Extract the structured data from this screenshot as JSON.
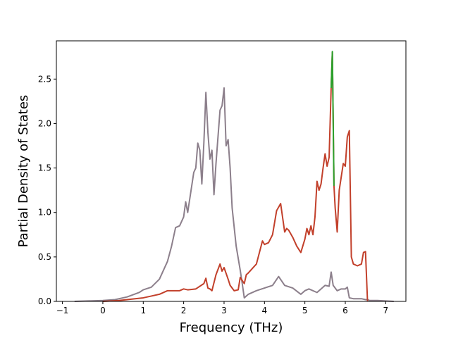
{
  "chart_data": {
    "type": "line",
    "title": "",
    "xlabel": "Frequency (THz)",
    "ylabel": "Partial Density of States",
    "xlim": [
      -1.15,
      7.5
    ],
    "ylim": [
      0,
      2.93
    ],
    "xticks": [
      -1,
      0,
      1,
      2,
      3,
      4,
      5,
      6,
      7
    ],
    "xtick_labels": [
      "−1",
      "0",
      "1",
      "2",
      "3",
      "4",
      "5",
      "6",
      "7"
    ],
    "yticks": [
      0,
      0.5,
      1.0,
      1.5,
      2.0,
      2.5
    ],
    "ytick_labels": [
      "0.0",
      "0.5",
      "1.0",
      "1.5",
      "2.0",
      "2.5"
    ],
    "grid": false,
    "legend": "none",
    "series": [
      {
        "color": "#8c7f8b",
        "x": [
          -0.7,
          0.0,
          0.3,
          0.6,
          0.9,
          1.0,
          1.2,
          1.4,
          1.6,
          1.7,
          1.8,
          1.9,
          2.0,
          2.05,
          2.1,
          2.2,
          2.25,
          2.3,
          2.35,
          2.4,
          2.45,
          2.5,
          2.55,
          2.6,
          2.65,
          2.7,
          2.75,
          2.8,
          2.85,
          2.9,
          2.95,
          3.0,
          3.05,
          3.1,
          3.15,
          3.2,
          3.3,
          3.4,
          3.45,
          3.5,
          3.6,
          3.8,
          4.0,
          4.2,
          4.35,
          4.5,
          4.7,
          4.9,
          5.0,
          5.1,
          5.3,
          5.5,
          5.6,
          5.65,
          5.7,
          5.8,
          5.9,
          6.0,
          6.05,
          6.1,
          6.2,
          6.3,
          6.4,
          6.5,
          6.55,
          6.6,
          6.8,
          7.0,
          7.2
        ],
        "y": [
          0.0,
          0.01,
          0.02,
          0.05,
          0.1,
          0.13,
          0.16,
          0.25,
          0.45,
          0.62,
          0.83,
          0.85,
          0.95,
          1.12,
          1.0,
          1.3,
          1.45,
          1.5,
          1.78,
          1.7,
          1.32,
          1.78,
          2.35,
          1.9,
          1.6,
          1.7,
          1.2,
          1.55,
          1.85,
          2.15,
          2.2,
          2.4,
          1.75,
          1.82,
          1.5,
          1.05,
          0.62,
          0.35,
          0.2,
          0.04,
          0.08,
          0.12,
          0.15,
          0.18,
          0.28,
          0.18,
          0.15,
          0.08,
          0.12,
          0.14,
          0.1,
          0.18,
          0.17,
          0.33,
          0.18,
          0.12,
          0.14,
          0.14,
          0.16,
          0.04,
          0.03,
          0.03,
          0.03,
          0.02,
          0.02,
          0.01,
          0.01,
          0.005,
          0.0
        ]
      },
      {
        "color": "#c2402b",
        "x": [
          0.0,
          0.4,
          0.8,
          1.0,
          1.2,
          1.4,
          1.6,
          1.7,
          1.9,
          2.0,
          2.1,
          2.3,
          2.5,
          2.55,
          2.6,
          2.65,
          2.7,
          2.8,
          2.9,
          2.95,
          3.0,
          3.1,
          3.15,
          3.25,
          3.35,
          3.4,
          3.5,
          3.55,
          3.6,
          3.8,
          3.95,
          4.0,
          4.1,
          4.2,
          4.3,
          4.4,
          4.5,
          4.55,
          4.6,
          4.7,
          4.8,
          4.9,
          5.0,
          5.05,
          5.1,
          5.15,
          5.2,
          5.25,
          5.3,
          5.35,
          5.4,
          5.45,
          5.5,
          5.55,
          5.6,
          5.65,
          5.68,
          5.72,
          5.75,
          5.8,
          5.85,
          5.9,
          5.95,
          6.0,
          6.05,
          6.1,
          6.15,
          6.2,
          6.3,
          6.4,
          6.45,
          6.5,
          6.55
        ],
        "y": [
          0.0,
          0.01,
          0.03,
          0.04,
          0.06,
          0.08,
          0.12,
          0.12,
          0.12,
          0.14,
          0.13,
          0.14,
          0.2,
          0.26,
          0.15,
          0.14,
          0.12,
          0.3,
          0.42,
          0.34,
          0.38,
          0.25,
          0.18,
          0.12,
          0.13,
          0.27,
          0.2,
          0.3,
          0.32,
          0.42,
          0.68,
          0.64,
          0.66,
          0.75,
          1.02,
          1.1,
          0.78,
          0.82,
          0.8,
          0.72,
          0.62,
          0.55,
          0.7,
          0.82,
          0.75,
          0.85,
          0.75,
          0.95,
          1.35,
          1.25,
          1.32,
          1.5,
          1.66,
          1.52,
          1.62,
          2.4,
          2.8,
          1.3,
          1.05,
          0.78,
          1.25,
          1.4,
          1.55,
          1.52,
          1.85,
          1.92,
          0.5,
          0.42,
          0.4,
          0.42,
          0.55,
          0.56,
          0.0
        ]
      },
      {
        "color": "#2ca02c",
        "x": [
          5.65,
          5.68,
          5.72
        ],
        "y": [
          2.4,
          2.81,
          1.3
        ]
      }
    ]
  }
}
